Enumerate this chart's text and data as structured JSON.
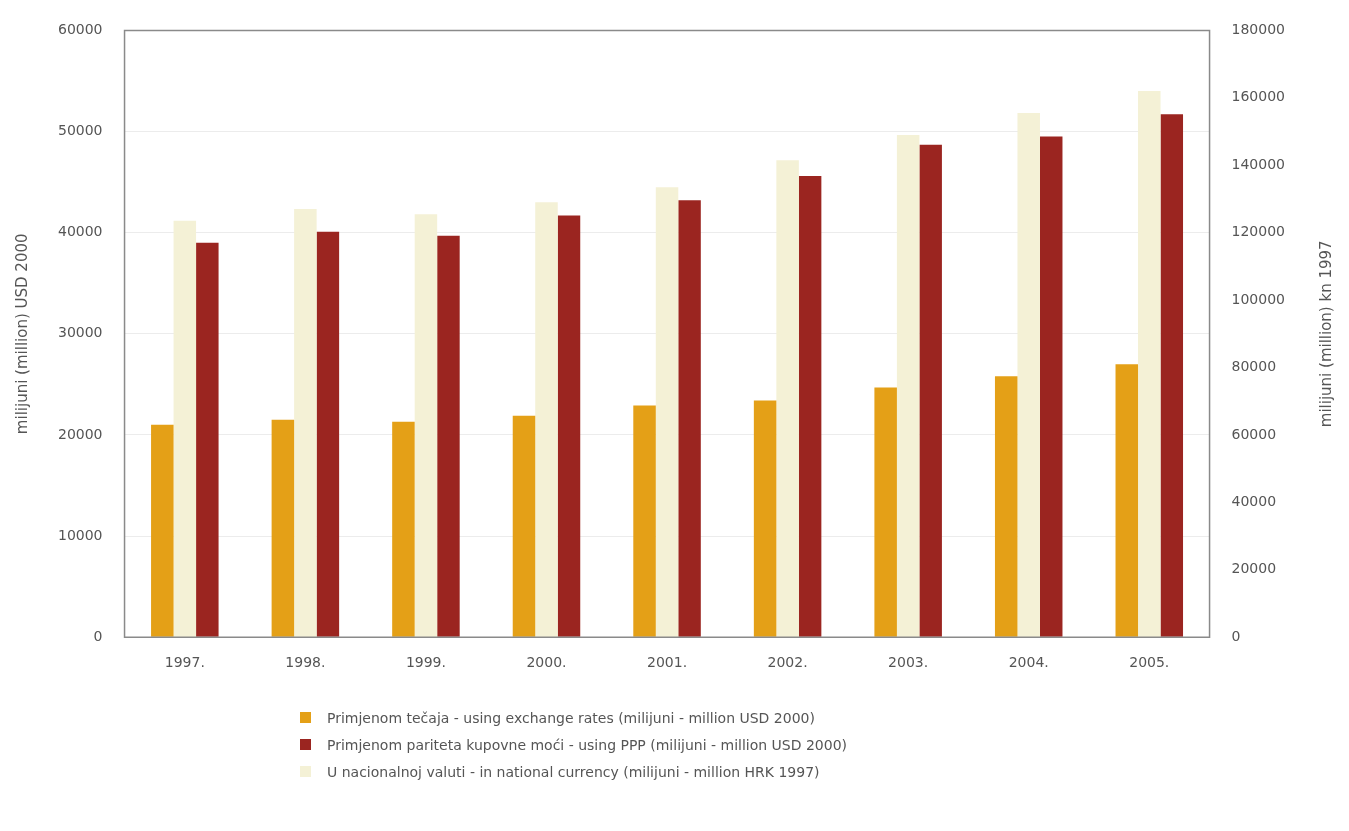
{
  "chart_data": {
    "type": "bar",
    "ylabel": "milijuni (million) USD 2000",
    "y2label": "milijuni (million) kn 1997",
    "categories": [
      "1997.",
      "1998.",
      "1999.",
      "2000.",
      "2001.",
      "2002.",
      "2003.",
      "2004.",
      "2005."
    ],
    "series": [
      {
        "name": "Primjenom tečaja - using exchange rates (milijuni - million USD 2000)",
        "color": "#e4a017",
        "values": [
          21000,
          21500,
          21300,
          21900,
          22900,
          23400,
          24700,
          25800,
          27000
        ]
      },
      {
        "name": "U nacionalnoj valuti - in national currency (milijuni - million HRK 1997)",
        "color": "#f4f1d6",
        "axis": "y2",
        "values": [
          123500,
          127000,
          125500,
          129000,
          133500,
          141500,
          149000,
          155500,
          162000
        ]
      },
      {
        "name": "Primjenom pariteta kupovne moći - using PPP (milijuni - million USD 2000)",
        "color": "#9b2520",
        "values": [
          39000,
          40100,
          39700,
          41700,
          43200,
          45600,
          48700,
          49500,
          51700
        ]
      }
    ],
    "ylim": [
      0,
      60000
    ],
    "yticks": [
      0,
      10000,
      20000,
      30000,
      40000,
      50000,
      60000
    ],
    "y2lim": [
      0,
      180000
    ],
    "y2ticks": [
      0,
      20000,
      40000,
      60000,
      80000,
      100000,
      120000,
      140000,
      160000,
      180000
    ],
    "grid": "y",
    "legend": "bottom"
  }
}
